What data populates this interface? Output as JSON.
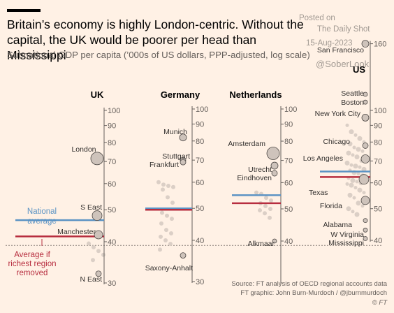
{
  "header": {
    "title": "Britain’s economy is highly London-centric. Without the capital, the UK would be poorer per head than Mississippi",
    "subtitle": "Subnational GDP per capita (’000s of US dollars, PPP-adjusted, log scale)"
  },
  "watermark": {
    "posted": "Posted on",
    "site": "The Daily Shot",
    "date": "15-Aug-2023",
    "handle": "@SoberLook"
  },
  "footer": {
    "source": "Source: FT analysis of OECD regional accounts data",
    "credit": "FT graphic: John Burn-Murdoch / @jburnmurdoch",
    "logo": "© FT"
  },
  "colors": {
    "background": "#fff1e5",
    "dot": "#d9ccc4",
    "named_dot": "#cec3bb",
    "national": "#5b93c4",
    "without_richest": "#b72e3f",
    "axis": "#66605c"
  },
  "chart_data": {
    "type": "scatter",
    "scale": "log",
    "ylim_by_panel": {
      "UK": [
        30,
        100
      ],
      "Germany": [
        30,
        100
      ],
      "Netherlands": [
        30,
        100
      ],
      "US": [
        38,
        160
      ]
    },
    "legend": {
      "national_average": "National average",
      "average_without_richest": "Average if richest region removed"
    },
    "annotations": [
      {
        "text": "National average",
        "color": "#5b93c4"
      },
      {
        "text": "Average if richest region removed",
        "color": "#b72e3f"
      }
    ],
    "reference_line": {
      "value": 38.6,
      "style": "dotted"
    },
    "panels": [
      {
        "name": "UK",
        "ticks": [
          30,
          40,
          50,
          60,
          70,
          80,
          90,
          100
        ],
        "national_avg": 46.5,
        "avg_excl_richest": 41.5,
        "regions": [
          {
            "label": "London",
            "value": 71.5,
            "size": 9
          },
          {
            "label": "S East",
            "value": 48,
            "size": 7
          },
          {
            "label": "Manchester",
            "value": 42,
            "size": 6
          },
          {
            "label": "N East",
            "value": 32,
            "size": 4
          }
        ],
        "other_values": [
          39.5,
          38.5,
          37.5,
          36.5,
          35.2
        ]
      },
      {
        "name": "Germany",
        "ticks": [
          30,
          40,
          50,
          60,
          70,
          80,
          90,
          100
        ],
        "national_avg": 50,
        "avg_excl_richest": 49.5,
        "regions": [
          {
            "label": "Munich",
            "value": 82,
            "size": 5
          },
          {
            "label": "Stuttgart",
            "value": 70,
            "size": 4
          },
          {
            "label": "Frankfurt",
            "value": 69,
            "size": 4
          },
          {
            "label": "Saxony-Anhalt",
            "value": 36,
            "size": 4
          }
        ],
        "other_values": [
          60,
          59,
          58.5,
          58,
          57,
          54,
          52,
          48.5,
          47.5,
          46.5,
          45,
          43,
          42,
          41,
          40,
          39,
          37.5
        ]
      },
      {
        "name": "Netherlands",
        "ticks": [
          40,
          50,
          60,
          70,
          80,
          90,
          100
        ],
        "national_avg": 55,
        "avg_excl_richest": 52,
        "regions": [
          {
            "label": "Amsterdam",
            "value": 73.5,
            "size": 9
          },
          {
            "label": "Utrecht",
            "value": 67.5,
            "size": 5
          },
          {
            "label": "Eindhoven",
            "value": 64,
            "size": 4
          },
          {
            "label": "Alkmaar",
            "value": 40,
            "size": 3
          }
        ],
        "other_values": [
          56,
          55.5,
          54,
          53,
          52,
          51,
          50,
          49.5,
          48.5,
          47
        ]
      },
      {
        "name": "US",
        "ticks": [
          40,
          50,
          60,
          70,
          80,
          90,
          100,
          160
        ],
        "national_avg": 65,
        "avg_excl_richest": 62.5,
        "regions": [
          {
            "label": "San Francisco",
            "value": 160,
            "size": 5
          },
          {
            "label": "Seattle",
            "value": 112,
            "size": 3
          },
          {
            "label": "Boston",
            "value": 106,
            "size": 3
          },
          {
            "label": "New York City",
            "value": 95,
            "size": 5
          },
          {
            "label": "Chicago",
            "value": 78,
            "size": 4
          },
          {
            "label": "Los Angeles",
            "value": 71,
            "size": 6
          },
          {
            "label": "Texas",
            "value": 61.5,
            "size": 7
          },
          {
            "label": "Florida",
            "value": 53,
            "size": 6
          },
          {
            "label": "Alabama",
            "value": 46,
            "size": 3
          },
          {
            "label": "W Virginia",
            "value": 43,
            "size": 3
          },
          {
            "label": "Mississippi",
            "value": 40.5,
            "size": 3
          }
        ],
        "other_values": [
          90,
          86,
          84,
          82,
          80,
          79,
          77,
          76,
          75,
          74,
          73,
          72,
          70,
          69,
          68,
          67.5,
          67,
          66,
          65.5,
          64.5,
          64,
          63,
          62,
          61,
          60.5,
          60,
          59.5,
          59,
          58,
          57,
          56,
          55,
          54,
          52,
          51,
          50,
          49,
          48
        ]
      }
    ]
  }
}
